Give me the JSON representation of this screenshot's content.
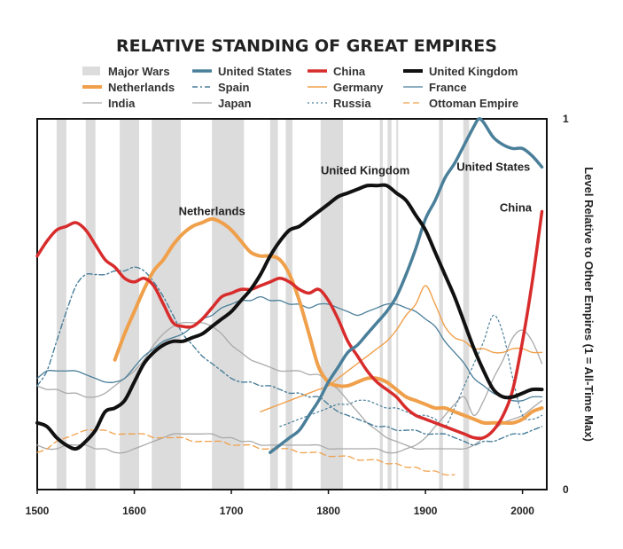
{
  "chart_data": {
    "type": "line",
    "title": "RELATIVE STANDING OF GREAT EMPIRES",
    "ylabel": "Level Relative to Other Empires (1 = All-Time Max)",
    "xlim": [
      1500,
      2025
    ],
    "ylim": [
      0,
      1
    ],
    "x_ticks": [
      "1500",
      "1600",
      "1700",
      "1800",
      "1900",
      "2000"
    ],
    "y_ticks": [
      "0",
      "1"
    ],
    "legend_placement": "top",
    "major_wars": [
      [
        1520,
        1530
      ],
      [
        1550,
        1560
      ],
      [
        1585,
        1605
      ],
      [
        1618,
        1648
      ],
      [
        1680,
        1713
      ],
      [
        1740,
        1748
      ],
      [
        1756,
        1763
      ],
      [
        1792,
        1815
      ],
      [
        1853,
        1856
      ],
      [
        1861,
        1865
      ],
      [
        1870,
        1871
      ],
      [
        1914,
        1918
      ],
      [
        1939,
        1945
      ]
    ],
    "legend": {
      "major_wars": "Major Wars"
    },
    "annotations": [
      {
        "text": "Netherlands",
        "x": 1680,
        "y": 0.74
      },
      {
        "text": "United Kingdom",
        "x": 1838,
        "y": 0.85
      },
      {
        "text": "United States",
        "x": 1970,
        "y": 0.86
      },
      {
        "text": "China",
        "x": 1993,
        "y": 0.75
      }
    ],
    "series": [
      {
        "name": "Netherlands",
        "color": "#f0a04b",
        "width": 4,
        "dash": "",
        "x": [
          1580,
          1590,
          1600,
          1610,
          1620,
          1630,
          1640,
          1650,
          1660,
          1670,
          1680,
          1690,
          1700,
          1710,
          1720,
          1730,
          1740,
          1750,
          1760,
          1770,
          1780,
          1790,
          1800,
          1810,
          1820,
          1830,
          1840,
          1850,
          1860,
          1870,
          1880,
          1890,
          1900,
          1910,
          1920,
          1930,
          1940,
          1950,
          1960,
          1970,
          1980,
          1990,
          2000,
          2010,
          2020
        ],
        "y": [
          0.35,
          0.42,
          0.48,
          0.54,
          0.59,
          0.62,
          0.66,
          0.69,
          0.71,
          0.72,
          0.73,
          0.72,
          0.7,
          0.67,
          0.64,
          0.63,
          0.63,
          0.62,
          0.58,
          0.51,
          0.42,
          0.33,
          0.29,
          0.28,
          0.28,
          0.29,
          0.3,
          0.3,
          0.29,
          0.27,
          0.25,
          0.24,
          0.23,
          0.22,
          0.22,
          0.21,
          0.2,
          0.19,
          0.18,
          0.18,
          0.18,
          0.18,
          0.19,
          0.21,
          0.22
        ]
      },
      {
        "name": "United States",
        "color": "#4a7f9a",
        "width": 3.5,
        "dash": "",
        "x": [
          1740,
          1750,
          1760,
          1770,
          1780,
          1790,
          1800,
          1810,
          1820,
          1830,
          1840,
          1850,
          1860,
          1870,
          1880,
          1890,
          1900,
          1910,
          1920,
          1930,
          1940,
          1950,
          1955,
          1960,
          1970,
          1980,
          1990,
          2000,
          2010,
          2020
        ],
        "y": [
          0.1,
          0.12,
          0.14,
          0.16,
          0.2,
          0.24,
          0.29,
          0.33,
          0.37,
          0.39,
          0.42,
          0.45,
          0.48,
          0.52,
          0.58,
          0.65,
          0.73,
          0.78,
          0.84,
          0.88,
          0.93,
          0.98,
          1.0,
          0.99,
          0.95,
          0.93,
          0.92,
          0.92,
          0.9,
          0.87
        ]
      },
      {
        "name": "China",
        "color": "#d82c2c",
        "width": 3.5,
        "dash": "",
        "x": [
          1500,
          1510,
          1520,
          1530,
          1540,
          1550,
          1560,
          1570,
          1580,
          1590,
          1600,
          1610,
          1620,
          1630,
          1640,
          1650,
          1660,
          1670,
          1680,
          1690,
          1700,
          1710,
          1720,
          1730,
          1740,
          1750,
          1760,
          1770,
          1780,
          1790,
          1800,
          1810,
          1820,
          1830,
          1840,
          1850,
          1860,
          1870,
          1880,
          1890,
          1900,
          1910,
          1920,
          1930,
          1940,
          1950,
          1960,
          1970,
          1980,
          1990,
          2000,
          2010,
          2020
        ],
        "y": [
          0.63,
          0.67,
          0.7,
          0.71,
          0.72,
          0.7,
          0.66,
          0.62,
          0.6,
          0.57,
          0.56,
          0.57,
          0.55,
          0.5,
          0.45,
          0.44,
          0.44,
          0.46,
          0.49,
          0.52,
          0.53,
          0.54,
          0.54,
          0.55,
          0.56,
          0.57,
          0.56,
          0.54,
          0.53,
          0.54,
          0.51,
          0.46,
          0.4,
          0.36,
          0.32,
          0.29,
          0.27,
          0.25,
          0.22,
          0.2,
          0.19,
          0.18,
          0.17,
          0.16,
          0.15,
          0.14,
          0.14,
          0.16,
          0.2,
          0.27,
          0.4,
          0.56,
          0.75
        ]
      },
      {
        "name": "United Kingdom",
        "color": "#111111",
        "width": 4,
        "dash": "",
        "x": [
          1500,
          1510,
          1520,
          1530,
          1540,
          1550,
          1560,
          1570,
          1580,
          1590,
          1600,
          1610,
          1620,
          1630,
          1640,
          1650,
          1660,
          1670,
          1680,
          1690,
          1700,
          1710,
          1720,
          1730,
          1740,
          1750,
          1760,
          1770,
          1780,
          1790,
          1800,
          1810,
          1820,
          1830,
          1840,
          1850,
          1860,
          1870,
          1880,
          1890,
          1900,
          1910,
          1920,
          1930,
          1940,
          1950,
          1960,
          1970,
          1980,
          1990,
          2000,
          2010,
          2020
        ],
        "y": [
          0.18,
          0.17,
          0.14,
          0.12,
          0.11,
          0.13,
          0.16,
          0.21,
          0.22,
          0.24,
          0.29,
          0.34,
          0.37,
          0.39,
          0.4,
          0.4,
          0.41,
          0.42,
          0.44,
          0.46,
          0.48,
          0.51,
          0.54,
          0.58,
          0.63,
          0.67,
          0.7,
          0.71,
          0.73,
          0.75,
          0.77,
          0.79,
          0.8,
          0.81,
          0.82,
          0.82,
          0.82,
          0.8,
          0.78,
          0.74,
          0.7,
          0.64,
          0.58,
          0.52,
          0.45,
          0.38,
          0.32,
          0.27,
          0.25,
          0.25,
          0.26,
          0.27,
          0.27
        ]
      },
      {
        "name": "Spain",
        "color": "#4a7f9a",
        "width": 1.4,
        "dash": "6 3 2 3",
        "x": [
          1500,
          1510,
          1520,
          1530,
          1540,
          1550,
          1560,
          1570,
          1580,
          1590,
          1600,
          1610,
          1620,
          1630,
          1640,
          1650,
          1660,
          1670,
          1680,
          1690,
          1700,
          1710,
          1720,
          1730,
          1740,
          1750,
          1760,
          1770,
          1780,
          1790,
          1800,
          1810,
          1820,
          1830,
          1840,
          1850,
          1860,
          1870,
          1880,
          1890,
          1900,
          1910,
          1920,
          1930,
          1940,
          1950,
          1960,
          1970,
          1980,
          1990,
          2000,
          2010,
          2020
        ],
        "y": [
          0.28,
          0.32,
          0.4,
          0.48,
          0.55,
          0.58,
          0.58,
          0.58,
          0.59,
          0.59,
          0.6,
          0.59,
          0.56,
          0.52,
          0.47,
          0.42,
          0.39,
          0.36,
          0.34,
          0.32,
          0.3,
          0.29,
          0.29,
          0.28,
          0.28,
          0.27,
          0.26,
          0.26,
          0.25,
          0.25,
          0.23,
          0.21,
          0.2,
          0.19,
          0.18,
          0.17,
          0.17,
          0.16,
          0.16,
          0.16,
          0.15,
          0.15,
          0.15,
          0.14,
          0.13,
          0.12,
          0.13,
          0.13,
          0.14,
          0.15,
          0.15,
          0.16,
          0.17
        ]
      },
      {
        "name": "Germany",
        "color": "#f0a04b",
        "width": 1.4,
        "dash": "",
        "x": [
          1730,
          1740,
          1750,
          1760,
          1770,
          1780,
          1790,
          1800,
          1810,
          1820,
          1830,
          1840,
          1850,
          1860,
          1870,
          1880,
          1890,
          1900,
          1910,
          1920,
          1930,
          1940,
          1950,
          1960,
          1970,
          1980,
          1990,
          2000,
          2010,
          2020
        ],
        "y": [
          0.21,
          0.22,
          0.23,
          0.24,
          0.25,
          0.26,
          0.27,
          0.28,
          0.3,
          0.32,
          0.34,
          0.36,
          0.38,
          0.4,
          0.43,
          0.47,
          0.5,
          0.55,
          0.5,
          0.44,
          0.41,
          0.4,
          0.38,
          0.38,
          0.37,
          0.37,
          0.38,
          0.38,
          0.37,
          0.37
        ]
      },
      {
        "name": "France",
        "color": "#4a7f9a",
        "width": 1.3,
        "dash": "",
        "x": [
          1500,
          1510,
          1520,
          1530,
          1540,
          1550,
          1560,
          1570,
          1580,
          1590,
          1600,
          1610,
          1620,
          1630,
          1640,
          1650,
          1660,
          1670,
          1680,
          1690,
          1700,
          1710,
          1720,
          1730,
          1740,
          1750,
          1760,
          1770,
          1780,
          1790,
          1800,
          1810,
          1820,
          1830,
          1840,
          1850,
          1860,
          1870,
          1880,
          1890,
          1900,
          1910,
          1920,
          1930,
          1940,
          1950,
          1960,
          1970,
          1980,
          1990,
          2000,
          2010,
          2020
        ],
        "y": [
          0.3,
          0.32,
          0.32,
          0.32,
          0.32,
          0.31,
          0.3,
          0.29,
          0.29,
          0.3,
          0.33,
          0.36,
          0.38,
          0.4,
          0.41,
          0.42,
          0.44,
          0.46,
          0.47,
          0.49,
          0.5,
          0.51,
          0.51,
          0.52,
          0.51,
          0.51,
          0.5,
          0.5,
          0.49,
          0.5,
          0.5,
          0.49,
          0.48,
          0.47,
          0.48,
          0.49,
          0.5,
          0.5,
          0.49,
          0.48,
          0.46,
          0.44,
          0.4,
          0.37,
          0.34,
          0.3,
          0.28,
          0.26,
          0.25,
          0.24,
          0.24,
          0.25,
          0.25
        ]
      },
      {
        "name": "India",
        "color": "#aaaaaa",
        "width": 1.3,
        "dash": "",
        "x": [
          1500,
          1510,
          1520,
          1530,
          1540,
          1550,
          1560,
          1570,
          1580,
          1590,
          1600,
          1610,
          1620,
          1630,
          1640,
          1650,
          1660,
          1670,
          1680,
          1690,
          1700,
          1710,
          1720,
          1730,
          1740,
          1750,
          1760,
          1770,
          1780,
          1790,
          1800,
          1810,
          1820,
          1830,
          1840,
          1850,
          1860,
          1870,
          1880,
          1890,
          1900,
          1910,
          1920,
          1930,
          1940,
          1950,
          1960,
          1970,
          1980,
          1990,
          2000,
          2010,
          2020
        ],
        "y": [
          0.28,
          0.27,
          0.27,
          0.26,
          0.26,
          0.25,
          0.25,
          0.26,
          0.28,
          0.3,
          0.32,
          0.35,
          0.39,
          0.42,
          0.44,
          0.45,
          0.45,
          0.45,
          0.44,
          0.42,
          0.39,
          0.37,
          0.35,
          0.34,
          0.33,
          0.32,
          0.32,
          0.32,
          0.31,
          0.31,
          0.29,
          0.27,
          0.24,
          0.21,
          0.18,
          0.16,
          0.14,
          0.13,
          0.12,
          0.11,
          0.11,
          0.11,
          0.11,
          0.11,
          0.11,
          0.12,
          0.14,
          0.16,
          0.18,
          0.19,
          0.2,
          0.22,
          0.24
        ]
      },
      {
        "name": "Japan",
        "color": "#aaaaaa",
        "width": 1.3,
        "dash": "",
        "x": [
          1500,
          1510,
          1520,
          1530,
          1540,
          1550,
          1560,
          1570,
          1580,
          1590,
          1600,
          1610,
          1620,
          1630,
          1640,
          1650,
          1660,
          1670,
          1680,
          1690,
          1700,
          1710,
          1720,
          1730,
          1740,
          1750,
          1760,
          1770,
          1780,
          1790,
          1800,
          1810,
          1820,
          1830,
          1840,
          1850,
          1860,
          1870,
          1880,
          1890,
          1900,
          1910,
          1920,
          1930,
          1940,
          1950,
          1960,
          1970,
          1980,
          1990,
          2000,
          2010,
          2020
        ],
        "y": [
          0.12,
          0.11,
          0.11,
          0.12,
          0.12,
          0.12,
          0.11,
          0.11,
          0.1,
          0.1,
          0.11,
          0.12,
          0.13,
          0.14,
          0.15,
          0.15,
          0.15,
          0.15,
          0.15,
          0.14,
          0.14,
          0.13,
          0.13,
          0.12,
          0.12,
          0.12,
          0.12,
          0.12,
          0.12,
          0.12,
          0.11,
          0.11,
          0.11,
          0.11,
          0.11,
          0.11,
          0.1,
          0.1,
          0.11,
          0.12,
          0.14,
          0.17,
          0.2,
          0.23,
          0.25,
          0.2,
          0.24,
          0.3,
          0.35,
          0.41,
          0.43,
          0.4,
          0.34
        ]
      },
      {
        "name": "Russia",
        "color": "#4a7f9a",
        "width": 1.2,
        "dash": "2 3",
        "x": [
          1750,
          1760,
          1770,
          1780,
          1790,
          1800,
          1810,
          1820,
          1830,
          1840,
          1850,
          1860,
          1870,
          1880,
          1890,
          1900,
          1910,
          1920,
          1930,
          1940,
          1950,
          1960,
          1970,
          1980,
          1990,
          2000,
          2010,
          2020
        ],
        "y": [
          0.17,
          0.18,
          0.19,
          0.2,
          0.21,
          0.22,
          0.23,
          0.23,
          0.24,
          0.24,
          0.23,
          0.22,
          0.22,
          0.21,
          0.2,
          0.2,
          0.19,
          0.17,
          0.22,
          0.28,
          0.34,
          0.4,
          0.47,
          0.42,
          0.3,
          0.2,
          0.19,
          0.2
        ]
      },
      {
        "name": "Ottoman Empire",
        "color": "#f0a04b",
        "width": 1.3,
        "dash": "7 4",
        "x": [
          1500,
          1510,
          1520,
          1530,
          1540,
          1550,
          1560,
          1570,
          1580,
          1590,
          1600,
          1610,
          1620,
          1630,
          1640,
          1650,
          1660,
          1670,
          1680,
          1690,
          1700,
          1710,
          1720,
          1730,
          1740,
          1750,
          1760,
          1770,
          1780,
          1790,
          1800,
          1810,
          1820,
          1830,
          1840,
          1850,
          1860,
          1870,
          1880,
          1890,
          1900,
          1910,
          1920,
          1930
        ],
        "y": [
          0.1,
          0.11,
          0.13,
          0.14,
          0.15,
          0.16,
          0.16,
          0.16,
          0.15,
          0.15,
          0.15,
          0.15,
          0.14,
          0.14,
          0.14,
          0.14,
          0.13,
          0.13,
          0.13,
          0.13,
          0.12,
          0.12,
          0.12,
          0.11,
          0.11,
          0.11,
          0.11,
          0.1,
          0.1,
          0.1,
          0.09,
          0.09,
          0.09,
          0.08,
          0.08,
          0.08,
          0.07,
          0.07,
          0.06,
          0.06,
          0.05,
          0.05,
          0.04,
          0.04
        ]
      }
    ]
  }
}
